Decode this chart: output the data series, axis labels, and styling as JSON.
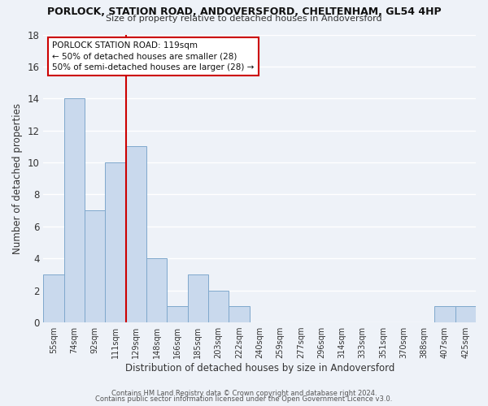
{
  "title": "PORLOCK, STATION ROAD, ANDOVERSFORD, CHELTENHAM, GL54 4HP",
  "subtitle": "Size of property relative to detached houses in Andoversford",
  "xlabel": "Distribution of detached houses by size in Andoversford",
  "ylabel": "Number of detached properties",
  "bar_labels": [
    "55sqm",
    "74sqm",
    "92sqm",
    "111sqm",
    "129sqm",
    "148sqm",
    "166sqm",
    "185sqm",
    "203sqm",
    "222sqm",
    "240sqm",
    "259sqm",
    "277sqm",
    "296sqm",
    "314sqm",
    "333sqm",
    "351sqm",
    "370sqm",
    "388sqm",
    "407sqm",
    "425sqm"
  ],
  "bar_values": [
    3,
    14,
    7,
    10,
    11,
    4,
    1,
    3,
    2,
    1,
    0,
    0,
    0,
    0,
    0,
    0,
    0,
    0,
    0,
    1,
    1
  ],
  "bar_color": "#c9d9ed",
  "bar_edgecolor": "#7fa8cc",
  "vline_color": "#cc0000",
  "ylim": [
    0,
    18
  ],
  "yticks": [
    0,
    2,
    4,
    6,
    8,
    10,
    12,
    14,
    16,
    18
  ],
  "annotation_title": "PORLOCK STATION ROAD: 119sqm",
  "annotation_line1": "← 50% of detached houses are smaller (28)",
  "annotation_line2": "50% of semi-detached houses are larger (28) →",
  "annotation_box_color": "#ffffff",
  "annotation_box_edgecolor": "#cc0000",
  "footer_line1": "Contains HM Land Registry data © Crown copyright and database right 2024.",
  "footer_line2": "Contains public sector information licensed under the Open Government Licence v3.0.",
  "background_color": "#eef2f8",
  "grid_color": "#ffffff",
  "figsize": [
    6.0,
    5.0
  ],
  "dpi": 100
}
